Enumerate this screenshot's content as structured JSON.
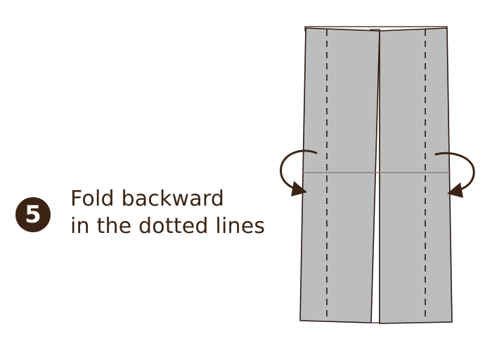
{
  "step": {
    "number": "5"
  },
  "instruction": {
    "line1": "Fold backward",
    "line2": "in the dotted lines"
  },
  "colors": {
    "paper_fill": "#bdbdbd",
    "outline": "#2a1a10",
    "arrow": "#3b2413",
    "crease": "#8c7f7f",
    "badge": "#3b2413",
    "text": "#3b2413"
  },
  "icons": {
    "left_arrow": "curved-arrow-backward-left-icon",
    "right_arrow": "curved-arrow-backward-right-icon"
  }
}
